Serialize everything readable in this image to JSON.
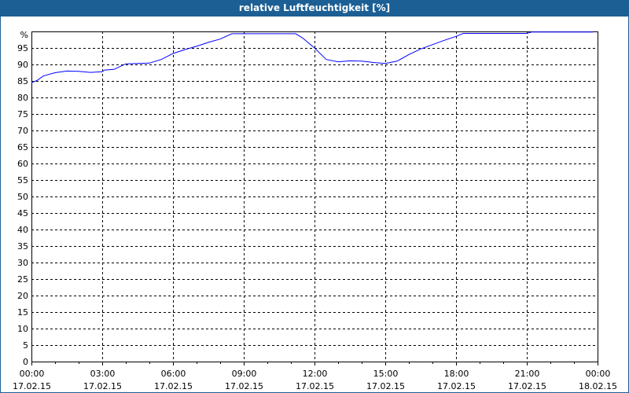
{
  "chart_data": {
    "type": "line",
    "title": "relative Luftfeuchtigkeit [%]",
    "ylabel": "%",
    "ylim": [
      0,
      100
    ],
    "yticks": [
      0,
      5,
      10,
      15,
      20,
      25,
      30,
      35,
      40,
      45,
      50,
      55,
      60,
      65,
      70,
      75,
      80,
      85,
      90,
      95
    ],
    "xlim_hours": [
      0,
      24
    ],
    "xticks": [
      {
        "h": 0,
        "time": "00:00",
        "date": "17.02.15"
      },
      {
        "h": 3,
        "time": "03:00",
        "date": "17.02.15"
      },
      {
        "h": 6,
        "time": "06:00",
        "date": "17.02.15"
      },
      {
        "h": 9,
        "time": "09:00",
        "date": "17.02.15"
      },
      {
        "h": 12,
        "time": "12:00",
        "date": "17.02.15"
      },
      {
        "h": 15,
        "time": "15:00",
        "date": "17.02.15"
      },
      {
        "h": 18,
        "time": "18:00",
        "date": "17.02.15"
      },
      {
        "h": 21,
        "time": "21:00",
        "date": "17.02.15"
      },
      {
        "h": 24,
        "time": "00:00",
        "date": "18.02.15"
      }
    ],
    "grid": true,
    "line_color": "#0000ff",
    "series": [
      {
        "x": [
          0,
          0.25,
          0.5,
          1,
          1.5,
          2,
          2.5,
          3,
          3.1,
          3.5,
          4,
          4.5,
          5,
          5.5,
          6,
          6.5,
          7,
          7.5,
          8,
          8.5,
          11.2,
          11.5,
          12,
          12.5,
          13,
          13.5,
          14,
          14.5,
          15,
          15.5,
          16,
          16.5,
          17,
          17.5,
          18,
          18.3,
          21,
          21.2,
          23.8
        ],
        "y": [
          84.5,
          85.2,
          86.5,
          87.5,
          88,
          87.9,
          87.6,
          87.8,
          88.3,
          88.5,
          90.2,
          90.3,
          90.4,
          91.5,
          93.3,
          94.5,
          95.5,
          96.7,
          97.7,
          99.3,
          99.3,
          98,
          95,
          91.5,
          90.8,
          91.1,
          91,
          90.6,
          90.3,
          91,
          93,
          94.7,
          96,
          97.3,
          98.5,
          99.4,
          99.4,
          99.8,
          99.8
        ]
      }
    ]
  },
  "colors": {
    "titlebar": "#1c5f94"
  }
}
